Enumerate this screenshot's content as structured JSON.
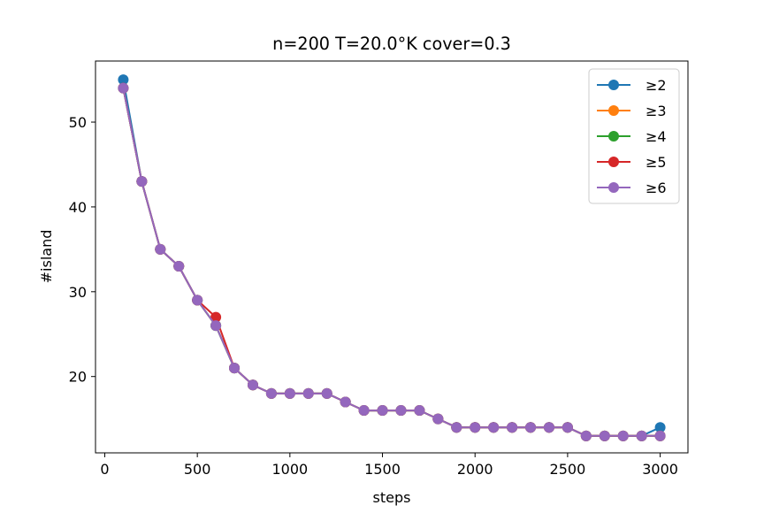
{
  "chart_data": {
    "type": "line",
    "title": "n=200 T=20.0°K cover=0.3",
    "xlabel": "steps",
    "ylabel": "#island",
    "xlim": [
      -50,
      3150
    ],
    "ylim": [
      11.0,
      57.2
    ],
    "x_ticks": [
      0,
      500,
      1000,
      1500,
      2000,
      2500,
      3000
    ],
    "y_ticks": [
      20,
      30,
      40,
      50
    ],
    "grid": false,
    "legend_position": "top-right",
    "x": [
      100,
      200,
      300,
      400,
      500,
      600,
      700,
      800,
      900,
      1000,
      1100,
      1200,
      1300,
      1400,
      1500,
      1600,
      1700,
      1800,
      1900,
      2000,
      2100,
      2200,
      2300,
      2400,
      2500,
      2600,
      2700,
      2800,
      2900,
      3000
    ],
    "series": [
      {
        "name": "≥2",
        "color": "#1f77b4",
        "values": [
          55,
          43,
          35,
          33,
          29,
          26,
          21,
          19,
          18,
          18,
          18,
          18,
          17,
          16,
          16,
          16,
          16,
          15,
          14,
          14,
          14,
          14,
          14,
          14,
          14,
          13,
          13,
          13,
          13,
          14
        ]
      },
      {
        "name": "≥3",
        "color": "#ff7f0e",
        "values": [
          54,
          43,
          35,
          33,
          29,
          26,
          21,
          19,
          18,
          18,
          18,
          18,
          17,
          16,
          16,
          16,
          16,
          15,
          14,
          14,
          14,
          14,
          14,
          14,
          14,
          13,
          13,
          13,
          13,
          13
        ]
      },
      {
        "name": "≥4",
        "color": "#2ca02c",
        "values": [
          54,
          43,
          35,
          33,
          29,
          26,
          21,
          19,
          18,
          18,
          18,
          18,
          17,
          16,
          16,
          16,
          16,
          15,
          14,
          14,
          14,
          14,
          14,
          14,
          14,
          13,
          13,
          13,
          13,
          13
        ]
      },
      {
        "name": "≥5",
        "color": "#d62728",
        "values": [
          54,
          43,
          35,
          33,
          29,
          27,
          21,
          19,
          18,
          18,
          18,
          18,
          17,
          16,
          16,
          16,
          16,
          15,
          14,
          14,
          14,
          14,
          14,
          14,
          14,
          13,
          13,
          13,
          13,
          13
        ]
      },
      {
        "name": "≥6",
        "color": "#9467bd",
        "values": [
          54,
          43,
          35,
          33,
          29,
          26,
          21,
          19,
          18,
          18,
          18,
          18,
          17,
          16,
          16,
          16,
          16,
          15,
          14,
          14,
          14,
          14,
          14,
          14,
          14,
          13,
          13,
          13,
          13,
          13
        ]
      }
    ]
  }
}
